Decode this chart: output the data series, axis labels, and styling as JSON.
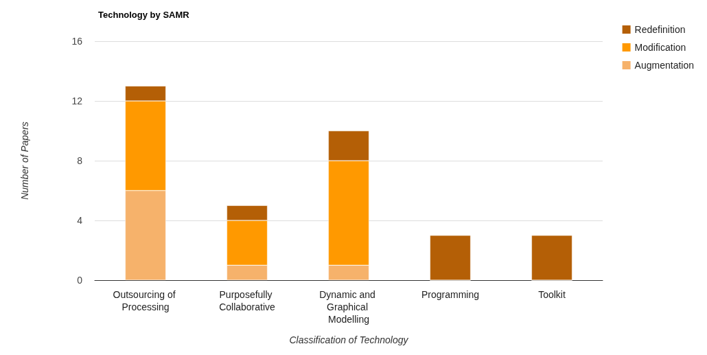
{
  "chart_data": {
    "type": "bar",
    "title": "Technology by SAMR",
    "xlabel": "Classification of Technology",
    "ylabel": "Number of Papers",
    "categories": [
      "Outsourcing of Processing",
      "Purposefully Collaborative",
      "Dynamic and Graphical Modelling",
      "Programming",
      "Toolkit"
    ],
    "stacked": true,
    "series": [
      {
        "name": "Augmentation",
        "color": "#f6b26b",
        "values": [
          6,
          1,
          1,
          0,
          0
        ]
      },
      {
        "name": "Modification",
        "color": "#ff9900",
        "values": [
          6,
          3,
          7,
          0,
          0
        ]
      },
      {
        "name": "Redefinition",
        "color": "#b45f06",
        "values": [
          1,
          1,
          2,
          3,
          3
        ]
      }
    ],
    "ylim": [
      0,
      16
    ],
    "yticks": [
      0,
      4,
      8,
      12,
      16
    ],
    "grid": "y",
    "legend": "top right"
  }
}
